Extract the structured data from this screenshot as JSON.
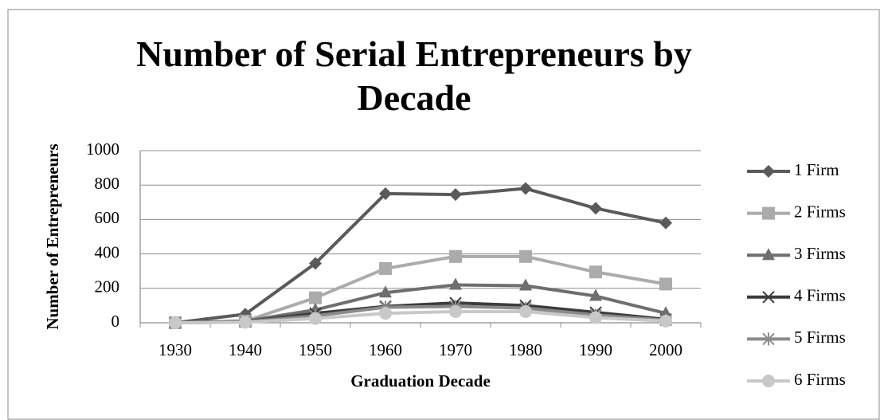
{
  "chart_data": {
    "type": "line",
    "title": "Number of Serial Entrepreneurs by Decade",
    "x_label": "Graduation Decade",
    "y_label": "Number of Entrepreneurs",
    "categories": [
      "1930",
      "1940",
      "1950",
      "1960",
      "1970",
      "1980",
      "1990",
      "2000"
    ],
    "series": [
      {
        "name": "1 Firm",
        "color": "#5a5a5a",
        "marker": "diamond",
        "values": [
          0,
          50,
          345,
          750,
          745,
          780,
          665,
          580
        ]
      },
      {
        "name": "2 Firms",
        "color": "#ababab",
        "marker": "square",
        "values": [
          0,
          10,
          145,
          315,
          385,
          385,
          295,
          225
        ]
      },
      {
        "name": "3 Firms",
        "color": "#6e6e6e",
        "marker": "triangle",
        "values": [
          0,
          10,
          75,
          175,
          220,
          215,
          155,
          55
        ]
      },
      {
        "name": "4 Firms",
        "color": "#3c3c3c",
        "marker": "x",
        "values": [
          0,
          5,
          55,
          95,
          115,
          100,
          60,
          20
        ]
      },
      {
        "name": "5 Firms",
        "color": "#8a8a8a",
        "marker": "star",
        "values": [
          0,
          5,
          40,
          90,
          95,
          85,
          45,
          15
        ]
      },
      {
        "name": "6 Firms",
        "color": "#c8c8c8",
        "marker": "circle",
        "values": [
          0,
          3,
          25,
          55,
          65,
          65,
          30,
          10
        ]
      }
    ],
    "ylim": [
      0,
      1000
    ],
    "yticks": [
      0,
      200,
      400,
      600,
      800,
      1000
    ],
    "grid": true,
    "legend": "right"
  }
}
